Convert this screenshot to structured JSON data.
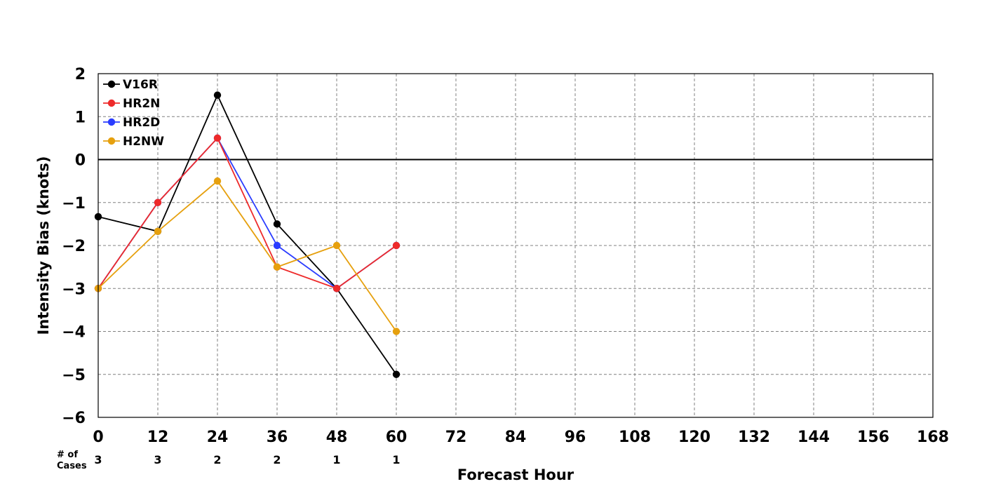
{
  "chart_data": {
    "type": "line",
    "title": "",
    "xlabel": "Forecast Hour",
    "ylabel": "Intensity Bias (knots)",
    "xlim": [
      0,
      168
    ],
    "ylim": [
      -6,
      2
    ],
    "x_ticks": [
      0,
      12,
      24,
      36,
      48,
      60,
      72,
      84,
      96,
      108,
      120,
      132,
      144,
      156,
      168
    ],
    "y_ticks": [
      2,
      1,
      0,
      -1,
      -2,
      -3,
      -4,
      -5,
      -6
    ],
    "y_tick_labels": [
      "2",
      "1",
      "0",
      "−1",
      "−2",
      "−3",
      "−4",
      "−5",
      "−6"
    ],
    "grid": true,
    "legend_position": "top-left",
    "cases": {
      "header": [
        "# of",
        "Cases"
      ],
      "x": [
        0,
        12,
        24,
        36,
        48,
        60
      ],
      "counts": [
        3,
        3,
        2,
        2,
        1,
        1
      ]
    },
    "series": [
      {
        "name": "V16R",
        "color": "#000000",
        "x": [
          0,
          12,
          24,
          36,
          48,
          60
        ],
        "values": [
          -1.33,
          -1.67,
          1.5,
          -1.5,
          -3,
          -5
        ]
      },
      {
        "name": "HR2D",
        "color": "#2a3cff",
        "x": [
          0,
          12,
          24,
          36,
          48,
          60
        ],
        "values": [
          -3,
          -1,
          0.5,
          -2,
          -3,
          -2
        ]
      },
      {
        "name": "HR2N",
        "color": "#ee2a2a",
        "x": [
          0,
          12,
          24,
          36,
          48,
          60
        ],
        "values": [
          -3,
          -1,
          0.5,
          -2.5,
          -3,
          -2
        ]
      },
      {
        "name": "H2NW",
        "color": "#e6a00e",
        "x": [
          0,
          12,
          24,
          36,
          48,
          60
        ],
        "values": [
          -3,
          -1.67,
          -0.5,
          -2.5,
          -2,
          -4
        ]
      }
    ],
    "legend_order": [
      "V16R",
      "HR2N",
      "HR2D",
      "H2NW"
    ]
  }
}
